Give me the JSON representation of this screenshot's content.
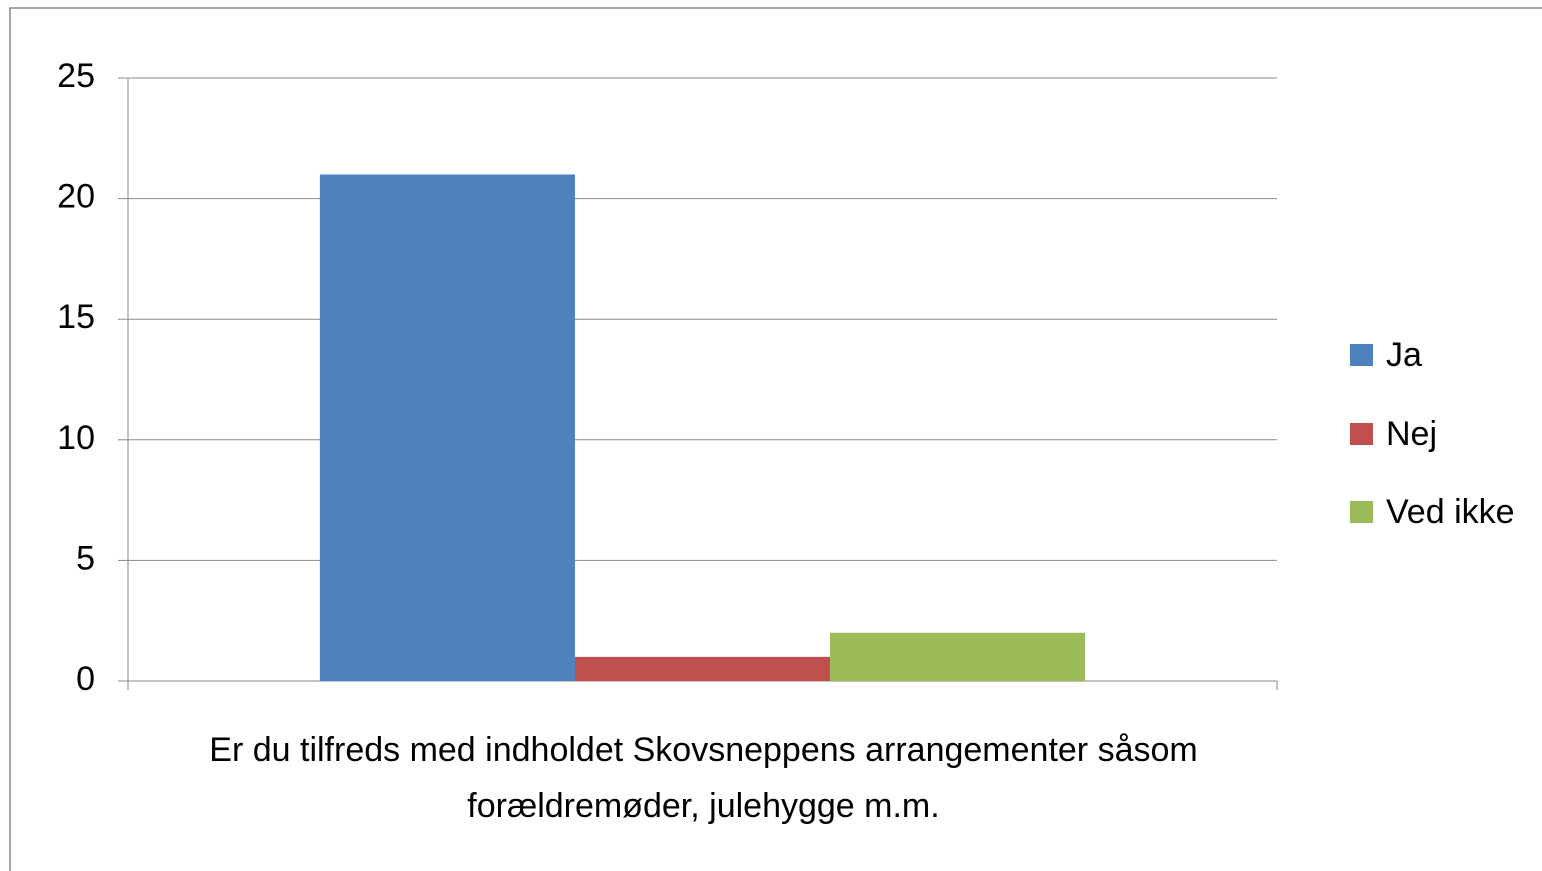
{
  "chart_data": {
    "type": "bar",
    "categories": [
      "Er du tilfreds med indholdet Skovsneppens arrangementer såsom forældremøder, julehygge m.m."
    ],
    "series": [
      {
        "name": "Ja",
        "color": "#4f81bd",
        "values": [
          21
        ]
      },
      {
        "name": "Nej",
        "color": "#c0504d",
        "values": [
          1
        ]
      },
      {
        "name": "Ved ikke",
        "color": "#9bbb59",
        "values": [
          2
        ]
      }
    ],
    "ylim": [
      0,
      25
    ],
    "yticks": [
      0,
      5,
      10,
      15,
      20,
      25
    ],
    "grid": true,
    "legend": "right"
  }
}
